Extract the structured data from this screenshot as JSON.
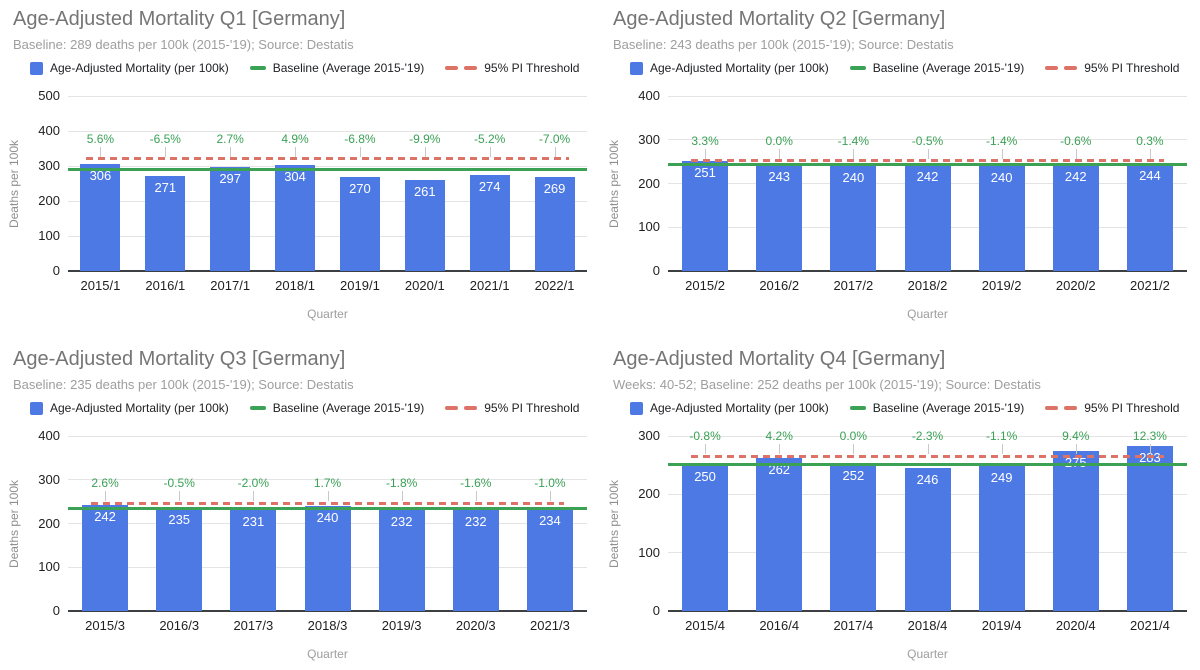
{
  "page": {
    "background": "#ffffff"
  },
  "colors": {
    "bar": "#4d79e5",
    "baseline": "#3aa155",
    "threshold": "#dd7366",
    "annotation_text": "#3aa155",
    "title": "#757575",
    "subtitle": "#9e9e9e",
    "grid": "#e4e4e4",
    "zero_axis": "#3c4043",
    "tick_text": "#1f1f1f",
    "axis_title": "#8f8f8f",
    "bar_label": "#ffffff",
    "stem": "#c9c9c9"
  },
  "legend": {
    "series_label": "Age-Adjusted Mortality (per 100k)",
    "baseline_label": "Baseline (Average 2015-'19)",
    "threshold_label": "95% PI Threshold"
  },
  "chart_data": [
    {
      "type": "bar",
      "title": "Age-Adjusted Mortality Q1 [Germany]",
      "subtitle": "Baseline: 289 deaths per 100k (2015-'19); Source: Destatis",
      "xlabel": "Quarter",
      "ylabel": "Deaths per 100k",
      "ylim": [
        0,
        500
      ],
      "ytick_step": 100,
      "grid": true,
      "legend_position": "top",
      "categories": [
        "2015/1",
        "2016/1",
        "2017/1",
        "2018/1",
        "2019/1",
        "2020/1",
        "2021/1",
        "2022/1"
      ],
      "values": [
        306,
        271,
        297,
        304,
        270,
        261,
        274,
        269
      ],
      "annotations": [
        "5.6%",
        "-6.5%",
        "2.7%",
        "4.9%",
        "-6.8%",
        "-9.9%",
        "-5.2%",
        "-7.0%"
      ],
      "baseline_value": 289,
      "threshold_value": 321
    },
    {
      "type": "bar",
      "title": "Age-Adjusted Mortality Q2 [Germany]",
      "subtitle": "Baseline: 243 deaths per 100k (2015-'19); Source: Destatis",
      "xlabel": "Quarter",
      "ylabel": "Deaths per 100k",
      "ylim": [
        0,
        400
      ],
      "ytick_step": 100,
      "grid": true,
      "legend_position": "top",
      "categories": [
        "2015/2",
        "2016/2",
        "2017/2",
        "2018/2",
        "2019/2",
        "2020/2",
        "2021/2"
      ],
      "values": [
        251,
        243,
        240,
        242,
        240,
        242,
        244
      ],
      "annotations": [
        "3.3%",
        "0.0%",
        "-1.4%",
        "-0.5%",
        "-1.4%",
        "-0.6%",
        "0.3%"
      ],
      "baseline_value": 243,
      "threshold_value": 252
    },
    {
      "type": "bar",
      "title": "Age-Adjusted Mortality Q3 [Germany]",
      "subtitle": "Baseline: 235 deaths per 100k (2015-'19); Source: Destatis",
      "xlabel": "Quarter",
      "ylabel": "Deaths per 100k",
      "ylim": [
        0,
        400
      ],
      "ytick_step": 100,
      "grid": true,
      "legend_position": "top",
      "categories": [
        "2015/3",
        "2016/3",
        "2017/3",
        "2018/3",
        "2019/3",
        "2020/3",
        "2021/3"
      ],
      "values": [
        242,
        235,
        231,
        240,
        232,
        232,
        234
      ],
      "annotations": [
        "2.6%",
        "-0.5%",
        "-2.0%",
        "1.7%",
        "-1.8%",
        "-1.6%",
        "-1.0%"
      ],
      "baseline_value": 235,
      "threshold_value": 246
    },
    {
      "type": "bar",
      "title": "Age-Adjusted Mortality Q4 [Germany]",
      "subtitle": "Weeks: 40-52; Baseline: 252 deaths per 100k (2015-'19); Source: Destatis",
      "xlabel": "Quarter",
      "ylabel": "Deaths per 100k",
      "ylim": [
        0,
        300
      ],
      "ytick_step": 100,
      "grid": true,
      "legend_position": "top",
      "categories": [
        "2015/4",
        "2016/4",
        "2017/4",
        "2018/4",
        "2019/4",
        "2020/4",
        "2021/4"
      ],
      "values": [
        250,
        262,
        252,
        246,
        249,
        275,
        283
      ],
      "annotations": [
        "-0.8%",
        "4.2%",
        "0.0%",
        "-2.3%",
        "-1.1%",
        "9.4%",
        "12.3%"
      ],
      "baseline_value": 252,
      "threshold_value": 265
    }
  ]
}
